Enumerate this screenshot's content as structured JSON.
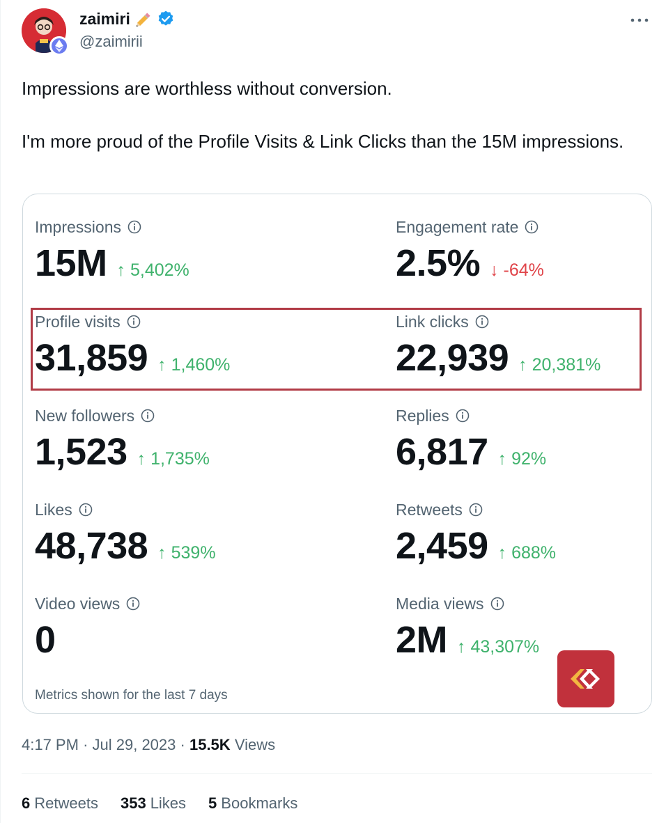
{
  "author": {
    "display_name": "zaimiri",
    "handle": "@zaimirii"
  },
  "tweet": {
    "text_line1": "Impressions are worthless without conversion.",
    "text_line2": "I'm more proud of the Profile Visits & Link Clicks than the 15M impressions."
  },
  "metrics": [
    {
      "label": "Impressions",
      "value": "15M",
      "change": "↑ 5,402%",
      "direction": "up"
    },
    {
      "label": "Engagement rate",
      "value": "2.5%",
      "change": "↓ -64%",
      "direction": "down"
    },
    {
      "label": "Profile visits",
      "value": "31,859",
      "change": "↑ 1,460%",
      "direction": "up"
    },
    {
      "label": "Link clicks",
      "value": "22,939",
      "change": "↑ 20,381%",
      "direction": "up"
    },
    {
      "label": "New followers",
      "value": "1,523",
      "change": "↑ 1,735%",
      "direction": "up"
    },
    {
      "label": "Replies",
      "value": "6,817",
      "change": "↑ 92%",
      "direction": "up"
    },
    {
      "label": "Likes",
      "value": "48,738",
      "change": "↑ 539%",
      "direction": "up"
    },
    {
      "label": "Retweets",
      "value": "2,459",
      "change": "↑ 688%",
      "direction": "up"
    },
    {
      "label": "Video views",
      "value": "0",
      "change": "",
      "direction": "none"
    },
    {
      "label": "Media views",
      "value": "2M",
      "change": "↑ 43,307%",
      "direction": "up"
    }
  ],
  "card_footer": "Metrics shown for the last 7 days",
  "meta": {
    "time": "4:17 PM",
    "date": "Jul 29, 2023",
    "views_count": "15.5K",
    "views_label": "Views"
  },
  "stats": {
    "retweets_count": "6",
    "retweets_label": "Retweets",
    "likes_count": "353",
    "likes_label": "Likes",
    "bookmarks_count": "5",
    "bookmarks_label": "Bookmarks"
  },
  "colors": {
    "positive": "#3fb26c",
    "negative": "#e0454a",
    "verified": "#1d9bf0",
    "highlight": "#b13b46"
  },
  "icons": {
    "pencil": "pencil-icon",
    "verified": "verified-badge-icon",
    "more": "more-horizontal-icon",
    "info": "info-icon",
    "eth": "ethereum-icon",
    "logo": "chevron-logo-icon"
  }
}
